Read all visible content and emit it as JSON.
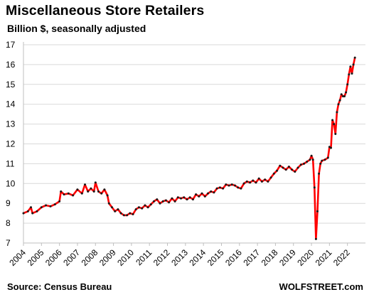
{
  "header": {
    "title": "Miscellaneous  Store Retailers",
    "subtitle": "Billion $, seasonally adjusted"
  },
  "footer": {
    "source": "Source: Census Bureau",
    "brand": "WOLFSTREET.com"
  },
  "colors": {
    "line": "#ff0000",
    "marker": "#1a1a1a",
    "grid": "#d9d9d9"
  },
  "chart_data": {
    "type": "line",
    "title": "Miscellaneous  Store Retailers",
    "subtitle": "Billion $, seasonally adjusted",
    "xlabel": "",
    "ylabel": "",
    "ylim": [
      7,
      17
    ],
    "xlim": [
      "2004-01",
      "2022-12"
    ],
    "yticks": [
      7,
      8,
      9,
      10,
      11,
      12,
      13,
      14,
      15,
      16,
      17
    ],
    "xticks": [
      "2004",
      "2005",
      "2006",
      "2007",
      "2008",
      "2009",
      "2010",
      "2011",
      "2012",
      "2013",
      "2014",
      "2015",
      "2016",
      "2017",
      "2018",
      "2019",
      "2020",
      "2021",
      "2022"
    ],
    "grid": "horizontal",
    "legend": "none",
    "markers": true,
    "series": [
      {
        "points": [
          [
            "2004-01",
            8.5
          ],
          [
            "2004-04",
            8.6
          ],
          [
            "2004-06",
            8.8
          ],
          [
            "2004-07",
            8.5
          ],
          [
            "2004-10",
            8.6
          ],
          [
            "2005-01",
            8.8
          ],
          [
            "2005-04",
            8.9
          ],
          [
            "2005-07",
            8.85
          ],
          [
            "2005-10",
            8.95
          ],
          [
            "2006-01",
            9.1
          ],
          [
            "2006-02",
            9.6
          ],
          [
            "2006-04",
            9.45
          ],
          [
            "2006-07",
            9.5
          ],
          [
            "2006-10",
            9.4
          ],
          [
            "2007-01",
            9.7
          ],
          [
            "2007-04",
            9.5
          ],
          [
            "2007-06",
            9.95
          ],
          [
            "2007-08",
            9.6
          ],
          [
            "2007-10",
            9.75
          ],
          [
            "2007-12",
            9.6
          ],
          [
            "2008-01",
            10.05
          ],
          [
            "2008-03",
            9.6
          ],
          [
            "2008-05",
            9.5
          ],
          [
            "2008-07",
            9.7
          ],
          [
            "2008-09",
            9.4
          ],
          [
            "2008-10",
            9.0
          ],
          [
            "2008-12",
            8.8
          ],
          [
            "2009-02",
            8.6
          ],
          [
            "2009-04",
            8.7
          ],
          [
            "2009-06",
            8.5
          ],
          [
            "2009-08",
            8.4
          ],
          [
            "2009-10",
            8.4
          ],
          [
            "2009-12",
            8.5
          ],
          [
            "2010-02",
            8.45
          ],
          [
            "2010-04",
            8.7
          ],
          [
            "2010-06",
            8.8
          ],
          [
            "2010-08",
            8.75
          ],
          [
            "2010-10",
            8.9
          ],
          [
            "2010-12",
            8.8
          ],
          [
            "2011-02",
            8.95
          ],
          [
            "2011-04",
            9.1
          ],
          [
            "2011-06",
            9.2
          ],
          [
            "2011-08",
            9.0
          ],
          [
            "2011-10",
            9.1
          ],
          [
            "2011-12",
            9.15
          ],
          [
            "2012-02",
            9.05
          ],
          [
            "2012-04",
            9.25
          ],
          [
            "2012-06",
            9.1
          ],
          [
            "2012-08",
            9.3
          ],
          [
            "2012-10",
            9.25
          ],
          [
            "2012-12",
            9.3
          ],
          [
            "2013-02",
            9.2
          ],
          [
            "2013-04",
            9.3
          ],
          [
            "2013-06",
            9.2
          ],
          [
            "2013-08",
            9.45
          ],
          [
            "2013-10",
            9.35
          ],
          [
            "2013-12",
            9.5
          ],
          [
            "2014-02",
            9.35
          ],
          [
            "2014-04",
            9.5
          ],
          [
            "2014-06",
            9.6
          ],
          [
            "2014-08",
            9.55
          ],
          [
            "2014-10",
            9.75
          ],
          [
            "2014-12",
            9.8
          ],
          [
            "2015-02",
            9.75
          ],
          [
            "2015-04",
            9.95
          ],
          [
            "2015-06",
            9.9
          ],
          [
            "2015-08",
            9.95
          ],
          [
            "2015-10",
            9.9
          ],
          [
            "2015-12",
            9.8
          ],
          [
            "2016-02",
            9.75
          ],
          [
            "2016-04",
            10.0
          ],
          [
            "2016-06",
            10.1
          ],
          [
            "2016-08",
            10.05
          ],
          [
            "2016-10",
            10.15
          ],
          [
            "2016-12",
            10.05
          ],
          [
            "2017-02",
            10.25
          ],
          [
            "2017-04",
            10.1
          ],
          [
            "2017-06",
            10.2
          ],
          [
            "2017-08",
            10.1
          ],
          [
            "2017-10",
            10.3
          ],
          [
            "2017-12",
            10.5
          ],
          [
            "2018-02",
            10.65
          ],
          [
            "2018-04",
            10.9
          ],
          [
            "2018-06",
            10.8
          ],
          [
            "2018-08",
            10.7
          ],
          [
            "2018-10",
            10.85
          ],
          [
            "2018-12",
            10.7
          ],
          [
            "2019-02",
            10.6
          ],
          [
            "2019-04",
            10.8
          ],
          [
            "2019-06",
            10.95
          ],
          [
            "2019-08",
            11.0
          ],
          [
            "2019-10",
            11.1
          ],
          [
            "2019-12",
            11.2
          ],
          [
            "2020-01",
            11.4
          ],
          [
            "2020-02",
            11.2
          ],
          [
            "2020-03",
            9.8
          ],
          [
            "2020-04",
            7.2
          ],
          [
            "2020-05",
            8.6
          ],
          [
            "2020-06",
            10.5
          ],
          [
            "2020-07",
            11.0
          ],
          [
            "2020-08",
            11.15
          ],
          [
            "2020-10",
            11.2
          ],
          [
            "2020-12",
            11.3
          ],
          [
            "2021-01",
            11.85
          ],
          [
            "2021-02",
            11.8
          ],
          [
            "2021-03",
            13.2
          ],
          [
            "2021-04",
            13.0
          ],
          [
            "2021-05",
            12.5
          ],
          [
            "2021-06",
            13.6
          ],
          [
            "2021-07",
            14.0
          ],
          [
            "2021-08",
            14.2
          ],
          [
            "2021-09",
            14.5
          ],
          [
            "2021-10",
            14.4
          ],
          [
            "2021-11",
            14.4
          ],
          [
            "2021-12",
            14.6
          ],
          [
            "2022-01",
            15.0
          ],
          [
            "2022-02",
            15.5
          ],
          [
            "2022-03",
            15.9
          ],
          [
            "2022-04",
            15.55
          ],
          [
            "2022-05",
            16.0
          ],
          [
            "2022-06",
            16.35
          ]
        ]
      }
    ]
  }
}
